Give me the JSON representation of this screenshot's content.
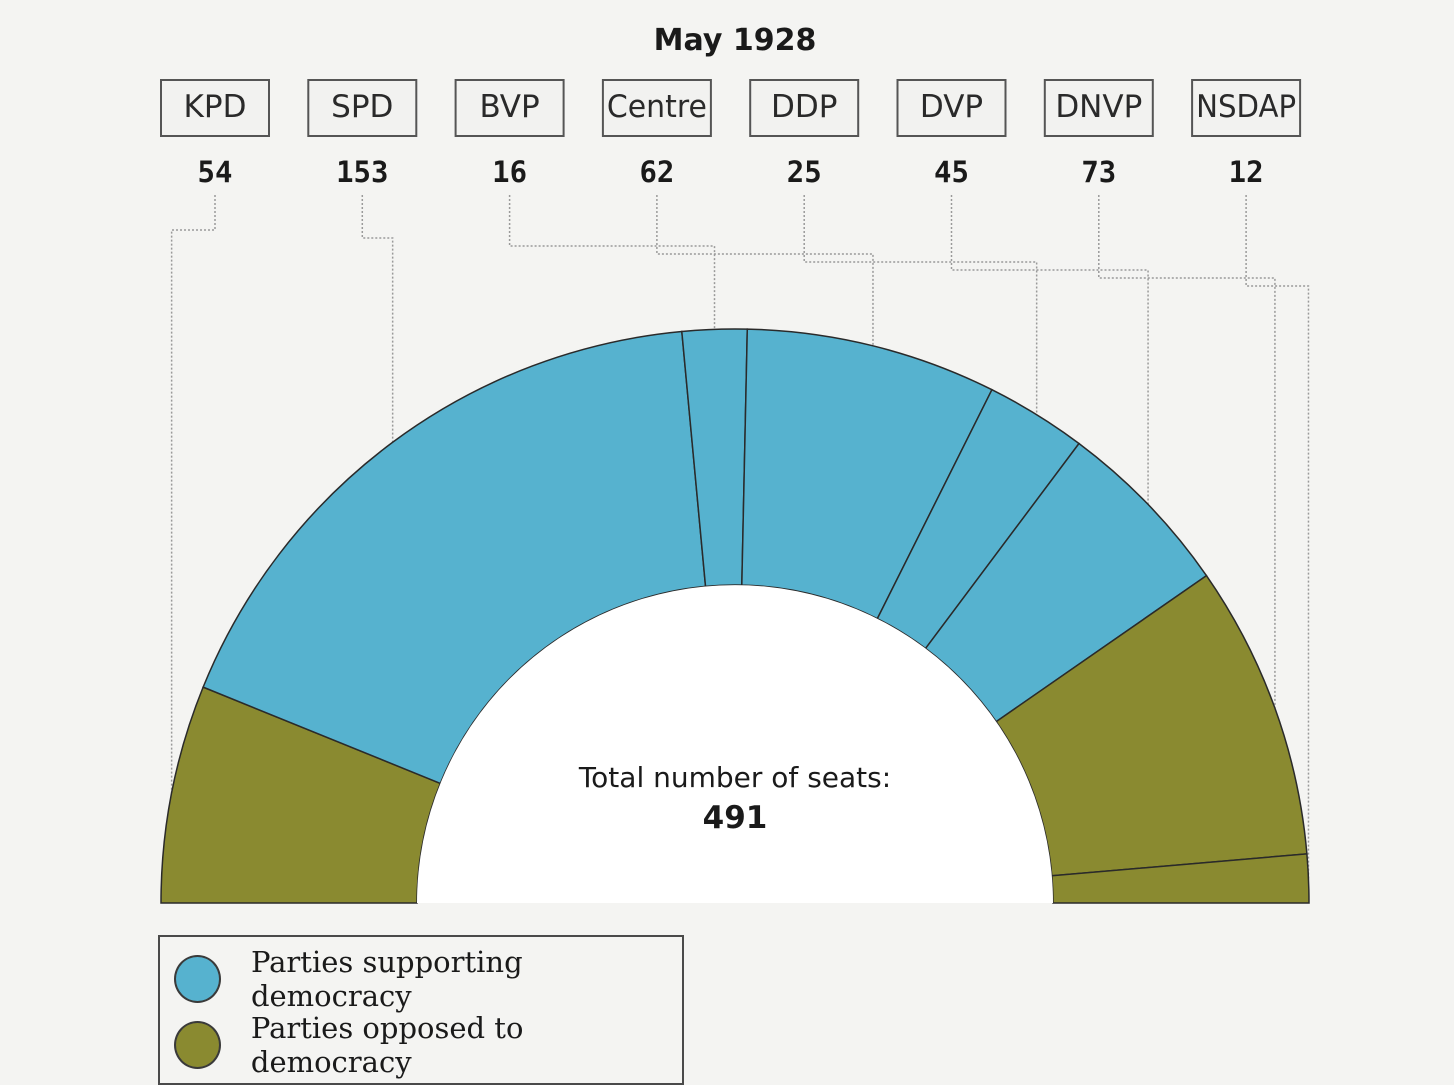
{
  "chart_data": {
    "type": "pie",
    "title": "May 1928",
    "categories": [
      "KPD",
      "SPD",
      "BVP",
      "Centre",
      "DDP",
      "DVP",
      "DNVP",
      "NSDAP"
    ],
    "values": [
      54,
      153,
      16,
      62,
      25,
      45,
      73,
      12
    ],
    "groups": [
      "opposed",
      "supporting",
      "supporting",
      "supporting",
      "supporting",
      "supporting",
      "opposed",
      "opposed"
    ],
    "center_label": "Total number of seats:",
    "total": "491",
    "legend": [
      {
        "key": "supporting",
        "label": "Parties supporting democracy",
        "color": "#56b2cf"
      },
      {
        "key": "opposed",
        "label": "Parties opposed to democracy",
        "color": "#8a8a30"
      }
    ],
    "legend_position": "bottom-left"
  }
}
